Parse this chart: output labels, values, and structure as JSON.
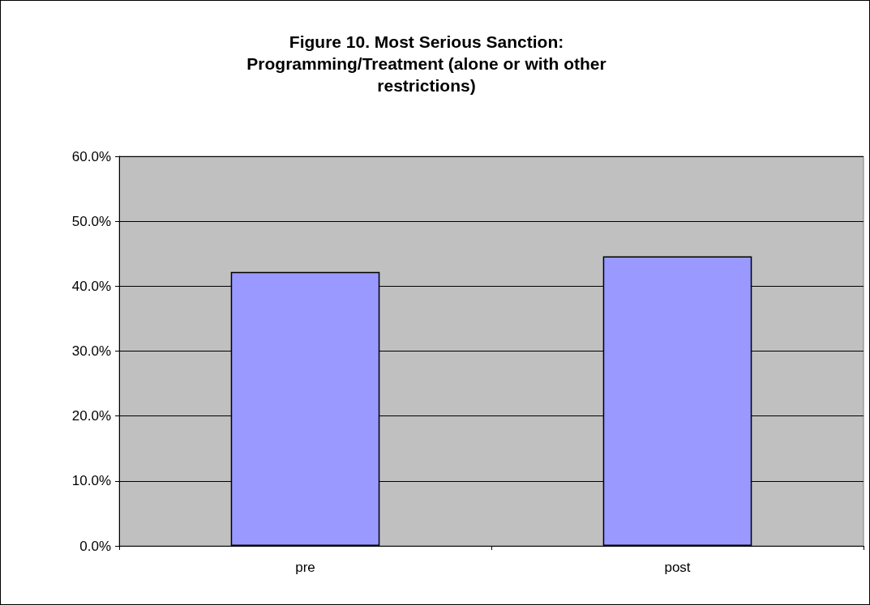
{
  "chart_data": {
    "type": "bar",
    "title": "Figure 10. Most Serious Sanction:\nProgramming/Treatment (alone or with other\nrestrictions)",
    "categories": [
      "pre",
      "post"
    ],
    "values": [
      42.2,
      44.6
    ],
    "color": "#9999ff",
    "ylim": [
      0,
      60
    ],
    "yticks": [
      {
        "value": 0,
        "label": "0.0%"
      },
      {
        "value": 10,
        "label": "10.0%"
      },
      {
        "value": 20,
        "label": "20.0%"
      },
      {
        "value": 30,
        "label": "30.0%"
      },
      {
        "value": 40,
        "label": "40.0%"
      },
      {
        "value": 50,
        "label": "50.0%"
      },
      {
        "value": 60,
        "label": "60.0%"
      }
    ],
    "grid": "y"
  }
}
